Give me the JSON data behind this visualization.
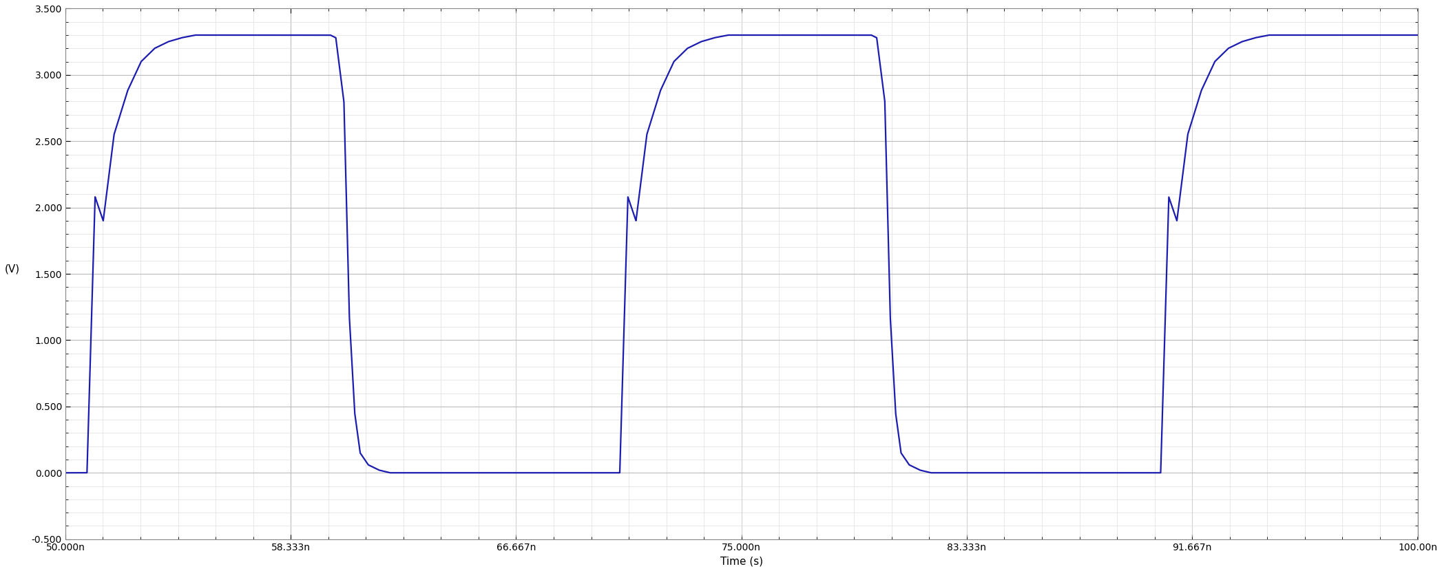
{
  "xlabel": "Time (s)",
  "ylabel": "(V)",
  "xlim_ns": [
    50,
    100
  ],
  "ylim": [
    -0.5,
    3.5
  ],
  "yticks": [
    -0.5,
    0.0,
    0.5,
    1.0,
    1.5,
    2.0,
    2.5,
    3.0,
    3.5
  ],
  "xtick_labels": [
    "50.000n",
    "58.333n",
    "66.667n",
    "75.000n",
    "83.333n",
    "91.667n",
    "100.00n"
  ],
  "xtick_values_ns": [
    50,
    58.333,
    66.667,
    75,
    83.333,
    91.667,
    100
  ],
  "line_color": "#1C1CB0",
  "line_width": 1.6,
  "bg_color": "#FFFFFF",
  "grid_major_color": "#BBBBBB",
  "grid_minor_color": "#DDDDDD",
  "high_level": 3.3,
  "low_level": 0.0,
  "waveform_points_ns": [
    [
      50.0,
      0.0
    ],
    [
      50.8,
      0.0
    ],
    [
      51.1,
      2.08
    ],
    [
      51.4,
      1.9
    ],
    [
      51.8,
      2.55
    ],
    [
      52.3,
      2.88
    ],
    [
      52.8,
      3.1
    ],
    [
      53.3,
      3.2
    ],
    [
      53.8,
      3.25
    ],
    [
      54.3,
      3.28
    ],
    [
      54.8,
      3.3
    ],
    [
      59.5,
      3.3
    ],
    [
      59.8,
      3.3
    ],
    [
      60.0,
      3.28
    ],
    [
      60.3,
      2.8
    ],
    [
      60.5,
      1.18
    ],
    [
      60.7,
      0.45
    ],
    [
      60.9,
      0.15
    ],
    [
      61.2,
      0.06
    ],
    [
      61.6,
      0.02
    ],
    [
      62.0,
      0.0
    ],
    [
      62.5,
      0.0
    ],
    [
      63.0,
      0.0
    ],
    [
      70.2,
      0.0
    ],
    [
      70.5,
      0.0
    ],
    [
      70.8,
      2.08
    ],
    [
      71.1,
      1.9
    ],
    [
      71.5,
      2.55
    ],
    [
      72.0,
      2.88
    ],
    [
      72.5,
      3.1
    ],
    [
      73.0,
      3.2
    ],
    [
      73.5,
      3.25
    ],
    [
      74.0,
      3.28
    ],
    [
      74.5,
      3.3
    ],
    [
      79.8,
      3.3
    ],
    [
      80.0,
      3.28
    ],
    [
      80.3,
      2.8
    ],
    [
      80.5,
      1.18
    ],
    [
      80.7,
      0.45
    ],
    [
      80.9,
      0.15
    ],
    [
      81.2,
      0.06
    ],
    [
      81.6,
      0.02
    ],
    [
      82.0,
      0.0
    ],
    [
      82.5,
      0.0
    ],
    [
      83.0,
      0.0
    ],
    [
      90.2,
      0.0
    ],
    [
      90.5,
      0.0
    ],
    [
      90.8,
      2.08
    ],
    [
      91.1,
      1.9
    ],
    [
      91.5,
      2.55
    ],
    [
      92.0,
      2.88
    ],
    [
      92.5,
      3.1
    ],
    [
      93.0,
      3.2
    ],
    [
      93.5,
      3.25
    ],
    [
      94.0,
      3.28
    ],
    [
      94.5,
      3.3
    ],
    [
      100.0,
      3.3
    ]
  ]
}
